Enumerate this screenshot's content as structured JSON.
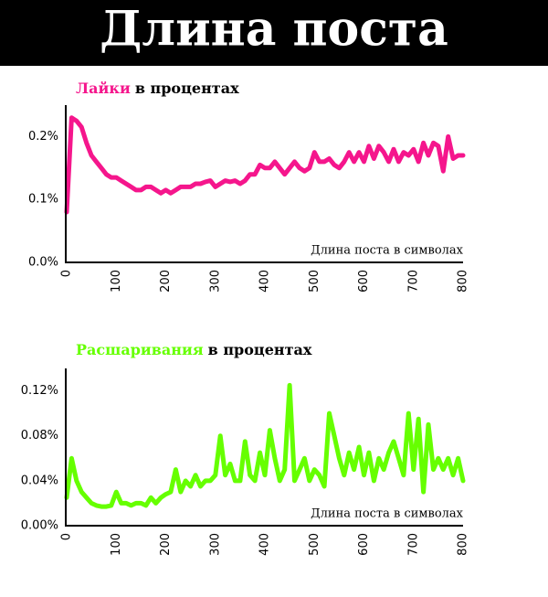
{
  "header": {
    "title": "Длина поста"
  },
  "chart_data": [
    {
      "type": "line",
      "title_parts": [
        {
          "text": "Лайки",
          "color": "#f5168c"
        },
        {
          "text": "в процентах",
          "color": "#000000"
        }
      ],
      "x_label": "Длина поста в символах",
      "color": "#f5168c",
      "x": [
        0,
        10,
        20,
        30,
        40,
        50,
        60,
        70,
        80,
        90,
        100,
        110,
        120,
        130,
        140,
        150,
        160,
        170,
        180,
        190,
        200,
        210,
        220,
        230,
        240,
        250,
        260,
        270,
        280,
        290,
        300,
        310,
        320,
        330,
        340,
        350,
        360,
        370,
        380,
        390,
        400,
        410,
        420,
        430,
        440,
        450,
        460,
        470,
        480,
        490,
        500,
        510,
        520,
        530,
        540,
        550,
        560,
        570,
        580,
        590,
        600,
        610,
        620,
        630,
        640,
        650,
        660,
        670,
        680,
        690,
        700,
        710,
        720,
        730,
        740,
        750,
        760,
        770,
        780,
        790,
        800
      ],
      "values": [
        0.08,
        0.23,
        0.225,
        0.215,
        0.19,
        0.17,
        0.16,
        0.15,
        0.14,
        0.135,
        0.135,
        0.13,
        0.125,
        0.12,
        0.115,
        0.115,
        0.12,
        0.12,
        0.115,
        0.11,
        0.115,
        0.11,
        0.115,
        0.12,
        0.12,
        0.12,
        0.125,
        0.125,
        0.128,
        0.13,
        0.12,
        0.125,
        0.13,
        0.128,
        0.13,
        0.125,
        0.13,
        0.14,
        0.14,
        0.155,
        0.15,
        0.15,
        0.16,
        0.15,
        0.14,
        0.15,
        0.16,
        0.15,
        0.145,
        0.15,
        0.175,
        0.16,
        0.16,
        0.165,
        0.155,
        0.15,
        0.16,
        0.175,
        0.16,
        0.175,
        0.16,
        0.185,
        0.165,
        0.185,
        0.175,
        0.16,
        0.18,
        0.16,
        0.175,
        0.17,
        0.18,
        0.16,
        0.19,
        0.17,
        0.19,
        0.185,
        0.145,
        0.2,
        0.165,
        0.17,
        0.17
      ],
      "xlim": [
        0,
        800
      ],
      "xticks": [
        0,
        100,
        200,
        300,
        400,
        500,
        600,
        700,
        800
      ],
      "ylim": [
        0,
        0.25
      ],
      "yticks": [
        {
          "value": 0,
          "label": "0.0%"
        },
        {
          "value": 0.1,
          "label": "0.1%"
        },
        {
          "value": 0.2,
          "label": "0.2%"
        }
      ]
    },
    {
      "type": "line",
      "title_parts": [
        {
          "text": "Расшаривания",
          "color": "#66ff00"
        },
        {
          "text": "в процентах",
          "color": "#000000"
        }
      ],
      "x_label": "Длина поста в символах",
      "color": "#66ff00",
      "x": [
        0,
        10,
        20,
        30,
        40,
        50,
        60,
        70,
        80,
        90,
        100,
        110,
        120,
        130,
        140,
        150,
        160,
        170,
        180,
        190,
        200,
        210,
        220,
        230,
        240,
        250,
        260,
        270,
        280,
        290,
        300,
        310,
        320,
        330,
        340,
        350,
        360,
        370,
        380,
        390,
        400,
        410,
        420,
        430,
        440,
        450,
        460,
        470,
        480,
        490,
        500,
        510,
        520,
        530,
        540,
        550,
        560,
        570,
        580,
        590,
        600,
        610,
        620,
        630,
        640,
        650,
        660,
        670,
        680,
        690,
        700,
        710,
        720,
        730,
        740,
        750,
        760,
        770,
        780,
        790,
        800
      ],
      "values": [
        0.025,
        0.06,
        0.04,
        0.03,
        0.025,
        0.02,
        0.018,
        0.017,
        0.017,
        0.018,
        0.03,
        0.02,
        0.02,
        0.018,
        0.02,
        0.02,
        0.018,
        0.025,
        0.02,
        0.025,
        0.028,
        0.03,
        0.05,
        0.03,
        0.04,
        0.035,
        0.045,
        0.035,
        0.04,
        0.04,
        0.045,
        0.08,
        0.045,
        0.055,
        0.04,
        0.04,
        0.075,
        0.045,
        0.04,
        0.065,
        0.045,
        0.085,
        0.06,
        0.04,
        0.05,
        0.125,
        0.04,
        0.05,
        0.06,
        0.04,
        0.05,
        0.045,
        0.035,
        0.1,
        0.08,
        0.06,
        0.045,
        0.065,
        0.05,
        0.07,
        0.045,
        0.065,
        0.04,
        0.06,
        0.05,
        0.065,
        0.075,
        0.06,
        0.045,
        0.1,
        0.05,
        0.095,
        0.03,
        0.09,
        0.05,
        0.06,
        0.05,
        0.06,
        0.045,
        0.06,
        0.04
      ],
      "xlim": [
        0,
        800
      ],
      "xticks": [
        0,
        100,
        200,
        300,
        400,
        500,
        600,
        700,
        800
      ],
      "ylim": [
        0,
        0.14
      ],
      "yticks": [
        {
          "value": 0,
          "label": "0.00%"
        },
        {
          "value": 0.04,
          "label": "0.04%"
        },
        {
          "value": 0.08,
          "label": "0.08%"
        },
        {
          "value": 0.12,
          "label": "0.12%"
        }
      ]
    }
  ]
}
